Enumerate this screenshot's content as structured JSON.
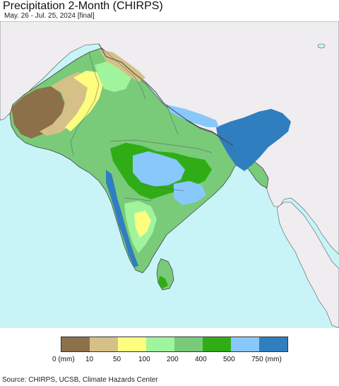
{
  "title": "Precipitation 2-Month (CHIRPS)",
  "subtitle": "May. 26 - Jul. 25, 2024 [final]",
  "legend": {
    "colors": [
      "#8c7049",
      "#d5c088",
      "#fdfd7f",
      "#a0f59c",
      "#79cb79",
      "#30ad16",
      "#88c8fb",
      "#2f7ec0"
    ],
    "tick_labels": [
      "0 (mm)",
      "10",
      "50",
      "100",
      "200",
      "400",
      "500",
      "750 (mm)"
    ]
  },
  "source": "Source: CHIRPS, UCSB, Climate Hazards Center",
  "map_colors": {
    "ocean": "#c8f4f8",
    "land_outside": "#efedf0",
    "border": "#444444"
  }
}
